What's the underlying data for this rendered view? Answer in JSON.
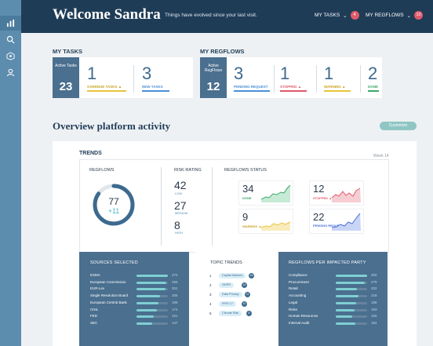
{
  "header": {
    "welcome": "Welcome Sandra",
    "subtitle": "Things have evolved since your last visit.",
    "my_tasks": "MY TASKS",
    "my_tasks_count": "4",
    "my_regflows": "MY REGFLOWS",
    "my_regflows_count": "10"
  },
  "sidebar": {
    "icons": [
      "bar-chart-icon",
      "search-icon",
      "network-icon",
      "user-icon"
    ]
  },
  "tasks": {
    "section_label": "MY TASKS",
    "active_label": "Active Tasks",
    "active_count": "23",
    "metrics": [
      {
        "value": "1",
        "label": "OVERDUE TASKS",
        "color": "#e8c43a"
      },
      {
        "value": "3",
        "label": "NEW TASKS",
        "color": "#4a90d9"
      }
    ]
  },
  "regflows": {
    "section_label": "MY REGFLOWS",
    "active_label": "Active RegFlows",
    "active_count": "12",
    "metrics": [
      {
        "value": "3",
        "label": "PENDING REQUEST",
        "color": "#4a90d9"
      },
      {
        "value": "1",
        "label": "STOPPED",
        "color": "#e05a6a"
      },
      {
        "value": "1",
        "label": "WARNING",
        "color": "#e8c43a"
      },
      {
        "value": "2",
        "label": "DONE",
        "color": "#3aa86b"
      }
    ]
  },
  "overview": {
    "title": "Overview platform activity",
    "customize": "Customize"
  },
  "trends": {
    "title": "TRENDS",
    "week": "Week 14",
    "regflows_title": "REGFLOWS",
    "regflows_total": "77",
    "regflows_delta": "+11",
    "regflows_gauge": 0.85,
    "risk_title": "RISK RATING",
    "risk": [
      {
        "value": "42",
        "label": "LOW"
      },
      {
        "value": "27",
        "label": "MEDIUM"
      },
      {
        "value": "8",
        "label": "HIGH"
      }
    ],
    "status_title": "REGFLOWS STATUS",
    "status": [
      {
        "value": "34",
        "label": "DONE",
        "color": "#3aa86b"
      },
      {
        "value": "12",
        "label": "STOPPED",
        "color": "#e05a6a"
      },
      {
        "value": "9",
        "label": "WARNING",
        "color": "#e8c43a"
      },
      {
        "value": "22",
        "label": "PENDING REQUEST",
        "color": "#4a6fd9"
      }
    ]
  },
  "sources": {
    "title": "SOURCES SELECTED",
    "max": 272,
    "items": [
      {
        "name": "ESMA",
        "value": 272
      },
      {
        "name": "European Commission",
        "value": 256
      },
      {
        "name": "EUR-Lex",
        "value": 251
      },
      {
        "name": "Single Resolution Board",
        "value": 206
      },
      {
        "name": "European Central Bank",
        "value": 189
      },
      {
        "name": "CNIL",
        "value": 174
      },
      {
        "name": "FED",
        "value": 151
      },
      {
        "name": "SEC",
        "value": 137
      }
    ]
  },
  "topics": {
    "title": "TOPIC TRENDS",
    "items": [
      {
        "rank": "1",
        "name": "Capital Markets",
        "count": "16"
      },
      {
        "rank": "2",
        "name": "GDPR",
        "count": "14"
      },
      {
        "rank": "3",
        "name": "Data Privacy",
        "count": "11"
      },
      {
        "rank": "4",
        "name": "IFRS 17",
        "count": "10"
      },
      {
        "rank": "5",
        "name": "Climate Risk",
        "count": "8"
      }
    ]
  },
  "impacted": {
    "title": "REGFLOWS PER IMPACTED PARTY",
    "max": 300,
    "items": [
      {
        "name": "Compliance",
        "value": 300
      },
      {
        "name": "Procurement",
        "value": 279
      },
      {
        "name": "Retail",
        "value": 202
      },
      {
        "name": "Accounting",
        "value": 218
      },
      {
        "name": "Legal",
        "value": 198
      },
      {
        "name": "Risks",
        "value": 183
      },
      {
        "name": "Human Resources",
        "value": 160
      },
      {
        "name": "Internal Audit",
        "value": 184
      }
    ]
  }
}
